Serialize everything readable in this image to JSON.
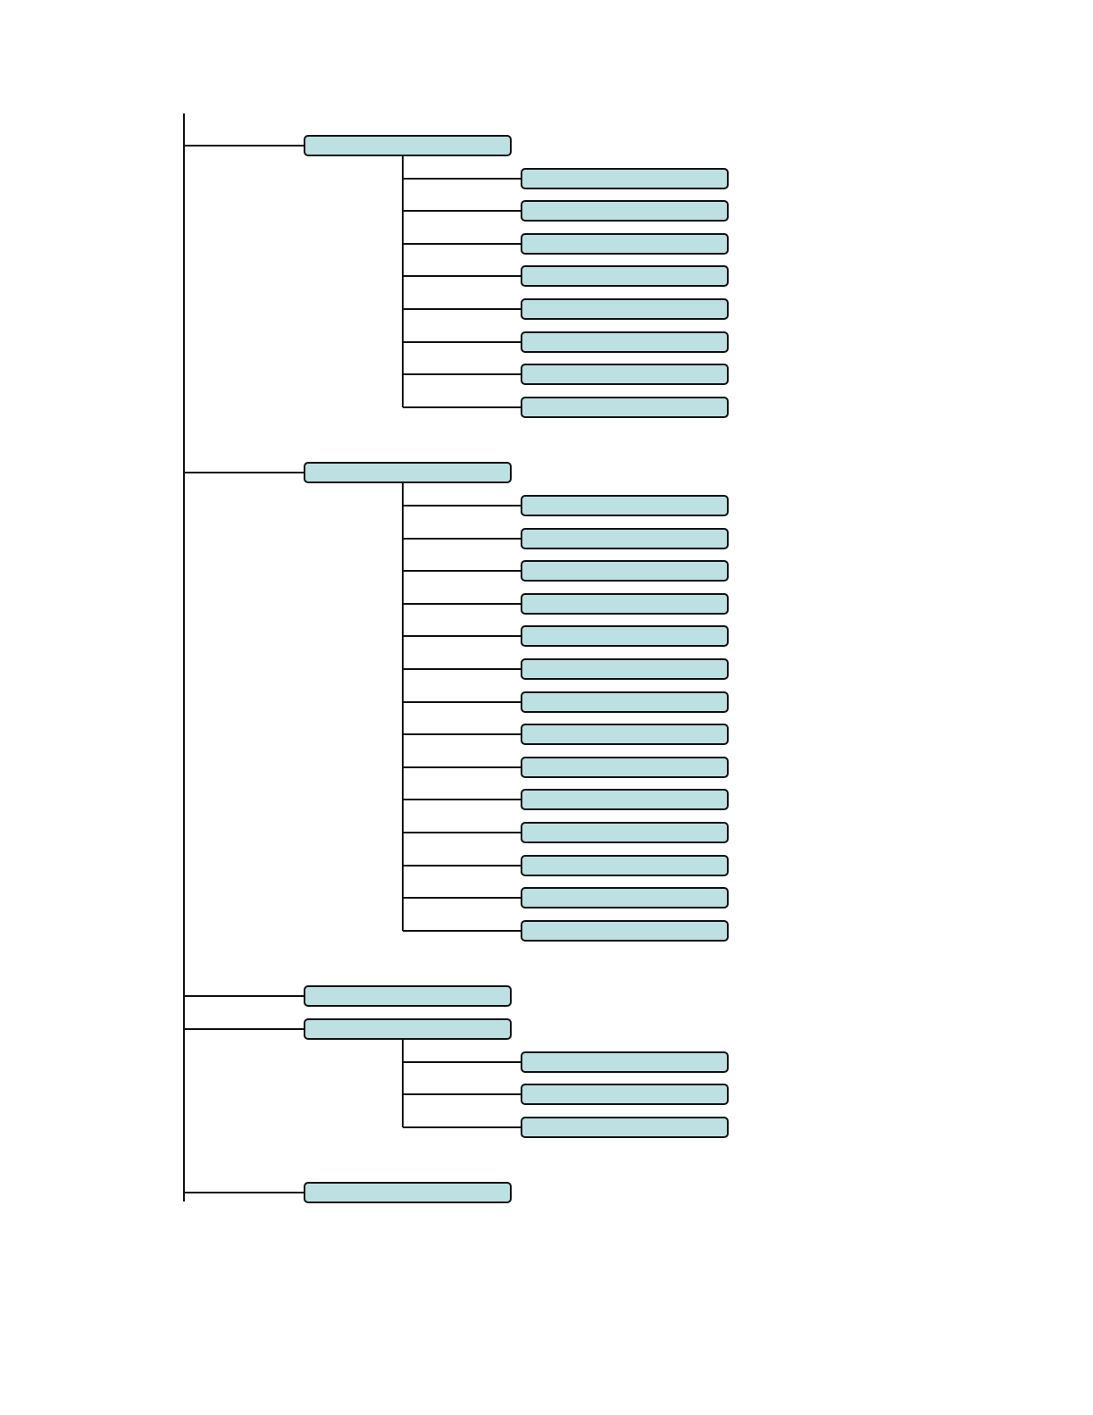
{
  "diagram": {
    "type": "tree",
    "orientation": "left-to-right",
    "colors": {
      "node_fill": "#bde0e3",
      "node_border": "#111111",
      "connector": "#111111",
      "background": "#ffffff"
    },
    "groups": [
      {
        "label": "",
        "children": [
          {
            "label": ""
          },
          {
            "label": ""
          },
          {
            "label": ""
          },
          {
            "label": ""
          },
          {
            "label": ""
          },
          {
            "label": ""
          },
          {
            "label": ""
          },
          {
            "label": ""
          }
        ]
      },
      {
        "label": "",
        "children": [
          {
            "label": ""
          },
          {
            "label": ""
          },
          {
            "label": ""
          },
          {
            "label": ""
          },
          {
            "label": ""
          },
          {
            "label": ""
          },
          {
            "label": ""
          },
          {
            "label": ""
          },
          {
            "label": ""
          },
          {
            "label": ""
          },
          {
            "label": ""
          },
          {
            "label": ""
          },
          {
            "label": ""
          },
          {
            "label": ""
          }
        ]
      },
      {
        "label": "",
        "children": []
      },
      {
        "label": "",
        "children": [
          {
            "label": ""
          },
          {
            "label": ""
          },
          {
            "label": ""
          }
        ]
      },
      {
        "label": "",
        "children": []
      }
    ]
  }
}
